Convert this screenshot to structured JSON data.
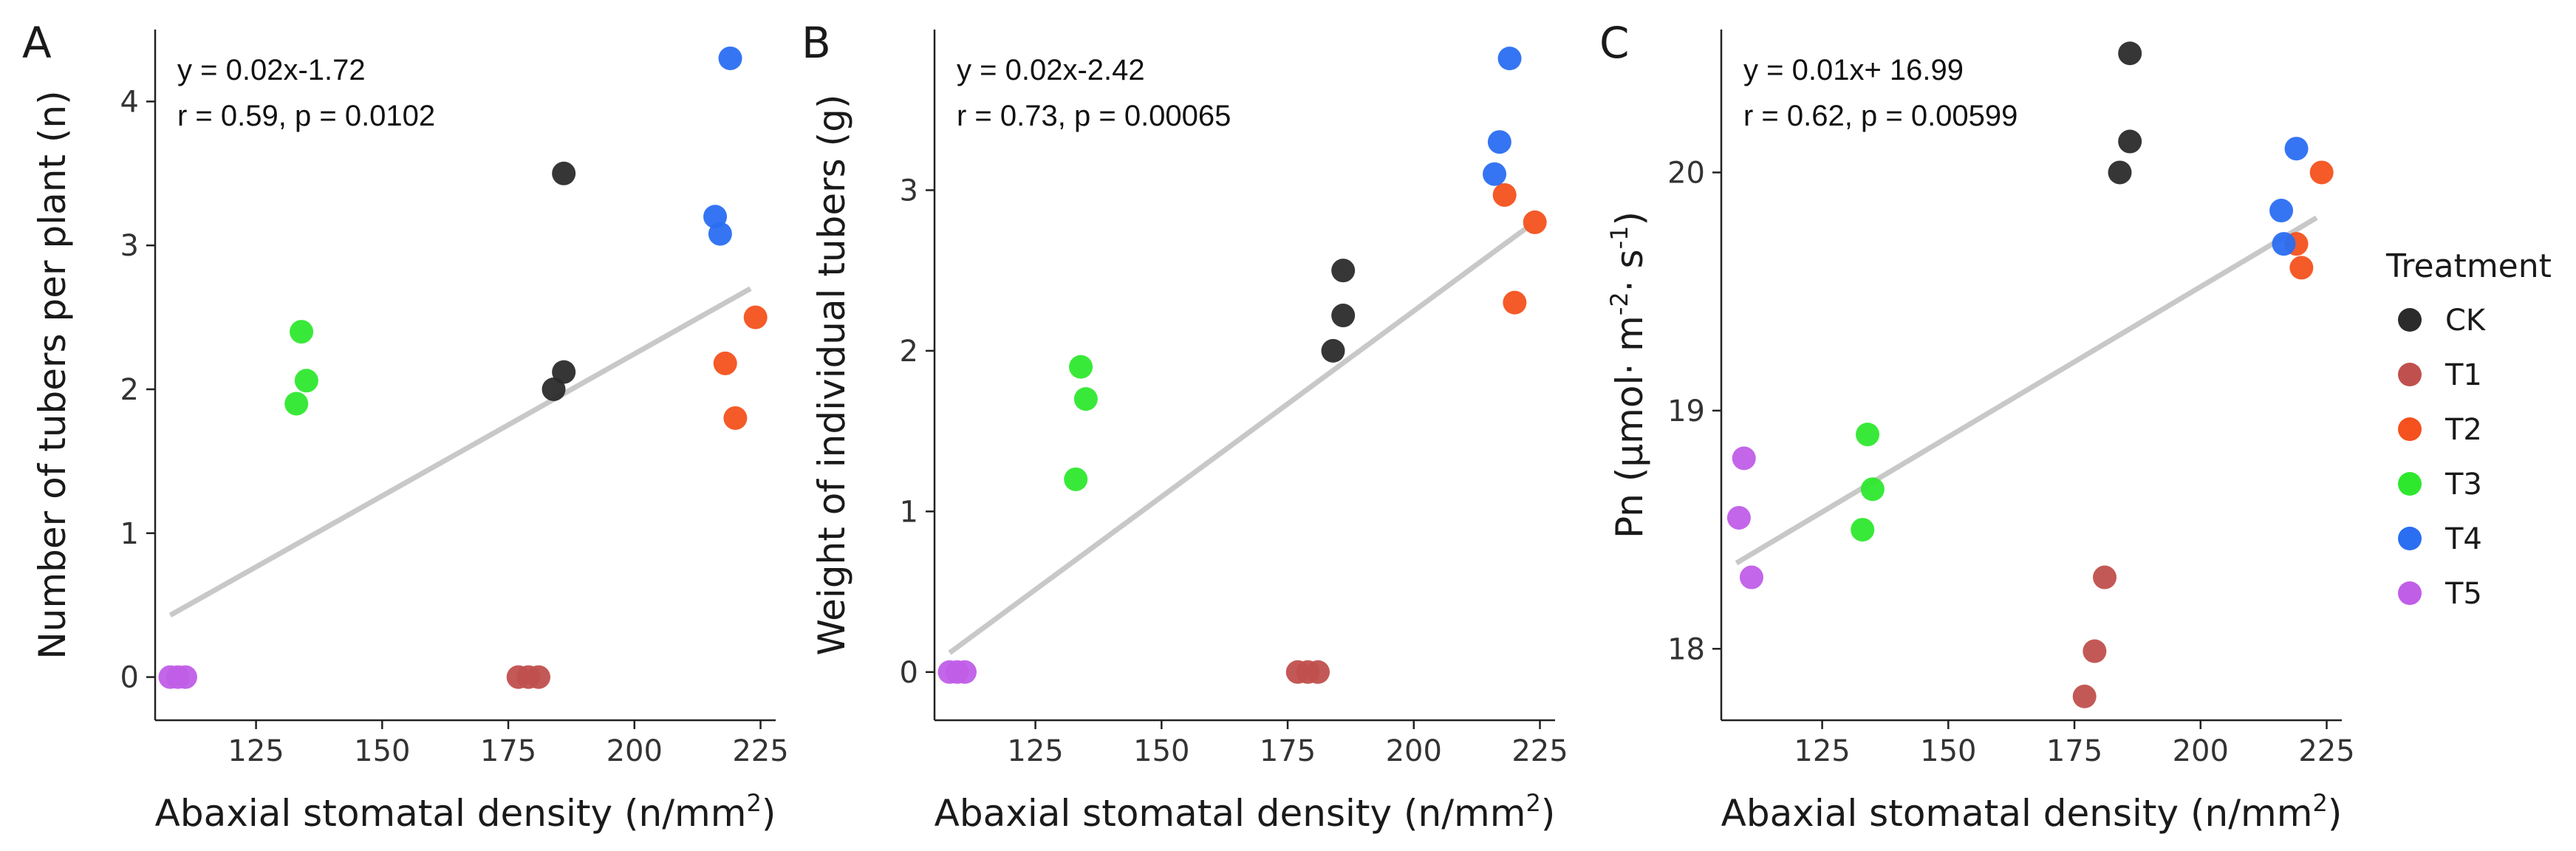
{
  "legend": {
    "title": "Treatment",
    "entries": [
      {
        "name": "CK",
        "color": "#2b2b2b"
      },
      {
        "name": "T1",
        "color": "#c0504d"
      },
      {
        "name": "T2",
        "color": "#f4511e"
      },
      {
        "name": "T3",
        "color": "#2ee82e"
      },
      {
        "name": "T4",
        "color": "#2a6ef2"
      },
      {
        "name": "T5",
        "color": "#c05ee8"
      }
    ]
  },
  "trend_line_color": "#c8c8c8",
  "chart_data": [
    {
      "type": "scatter",
      "panel": "A",
      "xlabel": "Abaxial stomatal density (n/mm",
      "xlabel_sup": "2",
      "xlabel_end": ")",
      "ylabel": "Number of tubers per plant (n)",
      "xlim": [
        105,
        228
      ],
      "ylim": [
        -0.3,
        4.5
      ],
      "xticks": [
        125,
        150,
        175,
        200,
        225
      ],
      "yticks": [
        0,
        1,
        2,
        3,
        4
      ],
      "equation": "y = 0.02x-1.72",
      "stats": "r = 0.59, p = 0.0102",
      "trend": {
        "x": [
          108,
          223
        ],
        "y": [
          0.43,
          2.7
        ]
      },
      "series": [
        {
          "name": "CK",
          "points": [
            [
              184,
              2.0
            ],
            [
              186,
              2.12
            ],
            [
              186,
              3.5
            ]
          ]
        },
        {
          "name": "T1",
          "points": [
            [
              177,
              0
            ],
            [
              179,
              0
            ],
            [
              181,
              0
            ]
          ]
        },
        {
          "name": "T2",
          "points": [
            [
              218,
              2.18
            ],
            [
              220,
              1.8
            ],
            [
              224,
              2.5
            ]
          ]
        },
        {
          "name": "T3",
          "points": [
            [
              133,
              1.9
            ],
            [
              134,
              2.4
            ],
            [
              135,
              2.06
            ]
          ]
        },
        {
          "name": "T4",
          "points": [
            [
              216,
              3.2
            ],
            [
              217,
              3.08
            ],
            [
              219,
              4.3
            ]
          ]
        },
        {
          "name": "T5",
          "points": [
            [
              108,
              0
            ],
            [
              109.5,
              0
            ],
            [
              111,
              0
            ]
          ]
        }
      ]
    },
    {
      "type": "scatter",
      "panel": "B",
      "xlabel": "Abaxial stomatal density (n/mm",
      "xlabel_sup": "2",
      "xlabel_end": ")",
      "ylabel": "Weight of individual tubers (g)",
      "xlim": [
        105,
        228
      ],
      "ylim": [
        -0.3,
        4.0
      ],
      "xticks": [
        125,
        150,
        175,
        200,
        225
      ],
      "yticks": [
        0,
        1,
        2,
        3
      ],
      "equation": "y = 0.02x-2.42",
      "stats": "r = 0.73, p = 0.00065",
      "trend": {
        "x": [
          108,
          223
        ],
        "y": [
          0.12,
          2.78
        ]
      },
      "series": [
        {
          "name": "CK",
          "points": [
            [
              184,
              2.0
            ],
            [
              186,
              2.22
            ],
            [
              186,
              2.5
            ]
          ]
        },
        {
          "name": "T1",
          "points": [
            [
              177,
              0
            ],
            [
              179,
              0
            ],
            [
              181,
              0
            ]
          ]
        },
        {
          "name": "T2",
          "points": [
            [
              218,
              2.97
            ],
            [
              220,
              2.3
            ],
            [
              224,
              2.8
            ]
          ]
        },
        {
          "name": "T3",
          "points": [
            [
              133,
              1.2
            ],
            [
              134,
              1.9
            ],
            [
              135,
              1.7
            ]
          ]
        },
        {
          "name": "T4",
          "points": [
            [
              216,
              3.1
            ],
            [
              217,
              3.3
            ],
            [
              219,
              3.82
            ]
          ]
        },
        {
          "name": "T5",
          "points": [
            [
              108,
              0
            ],
            [
              109.5,
              0
            ],
            [
              111,
              0
            ]
          ]
        }
      ]
    },
    {
      "type": "scatter",
      "panel": "C",
      "xlabel": "Abaxial stomatal density (n/mm",
      "xlabel_sup": "2",
      "xlabel_end": ")",
      "ylabel": "Pn (μmol· m",
      "ylabel_sup1": "-2",
      "ylabel_mid": "· s",
      "ylabel_sup2": "-1",
      "ylabel_end": ")",
      "xlim": [
        105,
        228
      ],
      "ylim": [
        17.7,
        20.6
      ],
      "xticks": [
        125,
        150,
        175,
        200,
        225
      ],
      "yticks": [
        18,
        19,
        20
      ],
      "equation": "y = 0.01x+ 16.99",
      "stats": "r = 0.62, p = 0.00599",
      "trend": {
        "x": [
          108,
          223
        ],
        "y": [
          18.36,
          19.81
        ]
      },
      "series": [
        {
          "name": "CK",
          "points": [
            [
              184,
              20.0
            ],
            [
              186,
              20.13
            ],
            [
              186,
              20.5
            ]
          ]
        },
        {
          "name": "T1",
          "points": [
            [
              177,
              17.8
            ],
            [
              179,
              17.99
            ],
            [
              181,
              18.3
            ]
          ]
        },
        {
          "name": "T2",
          "points": [
            [
              219,
              19.7
            ],
            [
              220,
              19.6
            ],
            [
              224,
              20.0
            ]
          ]
        },
        {
          "name": "T3",
          "points": [
            [
              133,
              18.5
            ],
            [
              134,
              18.9
            ],
            [
              135,
              18.67
            ]
          ]
        },
        {
          "name": "T4",
          "points": [
            [
              216,
              19.84
            ],
            [
              216.5,
              19.7
            ],
            [
              219,
              20.1
            ]
          ]
        },
        {
          "name": "T5",
          "points": [
            [
              108.5,
              18.55
            ],
            [
              109.5,
              18.8
            ],
            [
              111,
              18.3
            ]
          ]
        }
      ]
    }
  ]
}
